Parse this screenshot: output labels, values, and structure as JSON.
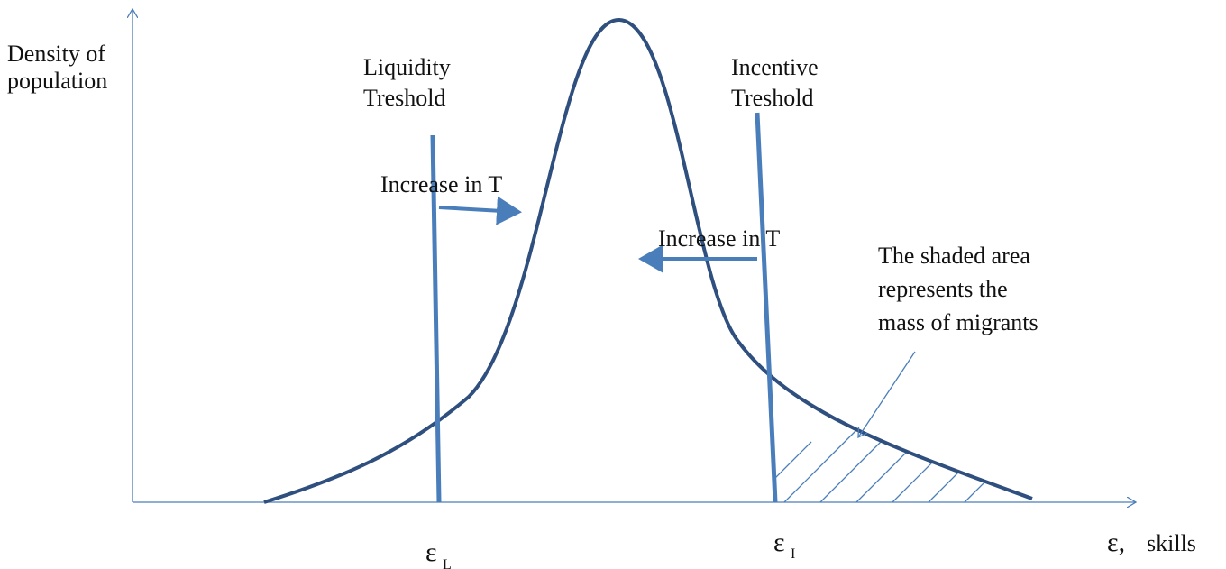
{
  "axes": {
    "y_label": [
      "Density of",
      "population"
    ],
    "x_label": {
      "symbol": "ε,",
      "text": "skills"
    }
  },
  "thresholds": [
    {
      "label": [
        "Liquidity",
        "Treshold"
      ],
      "symbol": "ε",
      "subscript": "L",
      "arrow_label": "Increase in T"
    },
    {
      "label": [
        "Incentive",
        "Treshold"
      ],
      "symbol": "ε",
      "subscript": "I",
      "arrow_label": "Increase in T"
    }
  ],
  "annotation": [
    "The shaded area",
    "represents the",
    "mass of migrants"
  ]
}
